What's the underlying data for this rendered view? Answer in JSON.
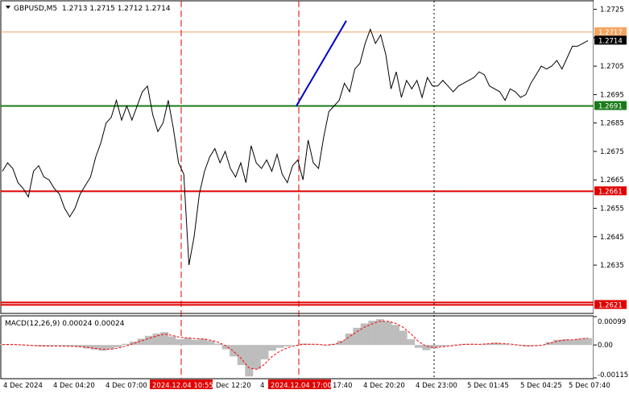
{
  "header": {
    "symbol_text": "GBPUSD,M5",
    "ohlc_text": "1.2713 1.2715 1.2712 1.2714"
  },
  "macd": {
    "label": "MACD(12,26,9) 0.00024 0.00024"
  },
  "colors": {
    "ask_line": "#f4a460",
    "level_green": "#1a7a1a",
    "level_red": "#e00000",
    "price_line": "#000000",
    "trend_line": "#0000cc",
    "macd_hist": "#bdbdbd",
    "macd_signal": "#ff0000"
  },
  "levels": [
    {
      "price": 1.2717,
      "label": "1.2717",
      "kind": "ask"
    },
    {
      "price": 1.2714,
      "label": "1.2714",
      "kind": "bid"
    },
    {
      "price": 1.2691,
      "label": "1.2691",
      "kind": "green"
    },
    {
      "price": 1.2661,
      "label": "1.2661",
      "kind": "red"
    },
    {
      "price": 1.2621,
      "label": "1.2621",
      "kind": "red"
    }
  ],
  "trend_line": {
    "from": {
      "time": "2024.12.04 17:00",
      "price": 1.2691
    },
    "to": {
      "time": "4 Dec 18:30",
      "price": 1.2721
    }
  },
  "chart_data": [
    {
      "type": "line",
      "title": "GBPUSD,M5 1.2713 1.2715 1.2712 1.2714",
      "xlabel": "",
      "ylabel": "",
      "x_ticks": [
        "4 Dec 2024",
        "4 Dec 04:20",
        "4 Dec 07:00",
        "2024.12.04 10:55",
        "Dec 12:20",
        "4",
        "2024.12.04 17:00",
        "17:40",
        "4 Dec 20:20",
        "4 Dec 23:00",
        "5 Dec 01:45",
        "5 Dec 04:25",
        "5 Dec 07:40"
      ],
      "y_ticks": [
        "1.2725",
        "1.2715",
        "1.2705",
        "1.2695",
        "1.2685",
        "1.2675",
        "1.2665",
        "1.2655",
        "1.2645",
        "1.2635"
      ],
      "ylim": [
        1.2618,
        1.2728
      ],
      "vertical_markers": [
        "2024.12.04 10:55",
        "2024.12.04 17:00",
        "4 Dec 23:00"
      ],
      "grid": false,
      "series": [
        {
          "values": [
            1.2668,
            1.2671,
            1.2669,
            1.2664,
            1.2662,
            1.2659,
            1.2668,
            1.267,
            1.2666,
            1.2665,
            1.2662,
            1.266,
            1.2655,
            1.2652,
            1.2655,
            1.266,
            1.2663,
            1.2666,
            1.2673,
            1.2678,
            1.2685,
            1.2687,
            1.2693,
            1.2686,
            1.2691,
            1.2686,
            1.2691,
            1.2696,
            1.2698,
            1.2688,
            1.2682,
            1.2685,
            1.2693,
            1.2683,
            1.2671,
            1.2667,
            1.2635,
            1.2645,
            1.266,
            1.2668,
            1.2673,
            1.2676,
            1.2671,
            1.2675,
            1.2669,
            1.2666,
            1.2671,
            1.2664,
            1.2677,
            1.2671,
            1.2669,
            1.2672,
            1.2668,
            1.2674,
            1.2667,
            1.2664,
            1.267,
            1.2672,
            1.2665,
            1.2679,
            1.2671,
            1.2669,
            1.268,
            1.2689,
            1.2691,
            1.2693,
            1.2699,
            1.2696,
            1.2704,
            1.2706,
            1.2713,
            1.2718,
            1.2713,
            1.2716,
            1.2709,
            1.2697,
            1.2703,
            1.2694,
            1.27,
            1.2697,
            1.27,
            1.2694,
            1.2701,
            1.2698,
            1.2698,
            1.27,
            1.2698,
            1.2696,
            1.2698,
            1.2699,
            1.27,
            1.2701,
            1.2703,
            1.2702,
            1.2698,
            1.2697,
            1.2696,
            1.2693,
            1.2697,
            1.2696,
            1.2694,
            1.2695,
            1.2699,
            1.2702,
            1.2705,
            1.2704,
            1.2705,
            1.2707,
            1.2704,
            1.2708,
            1.2712,
            1.2712,
            1.2713,
            1.2714
          ]
        }
      ]
    },
    {
      "type": "bar",
      "title": "MACD(12,26,9) 0.00024 0.00024",
      "xlabel": "",
      "ylabel": "",
      "y_ticks": [
        "0.00099",
        "0.00",
        "-0.00115"
      ],
      "ylim": [
        -0.00115,
        0.00099
      ],
      "series": [
        {
          "name": "MACD",
          "values": [
            3e-05,
            1e-05,
            2e-05,
            -2e-05,
            -3e-05,
            -5e-05,
            -4e-05,
            -3e-05,
            -4e-05,
            -5e-05,
            -7e-05,
            -0.00012,
            -0.00016,
            -0.0002,
            -0.00015,
            -8e-05,
            4e-05,
            0.00012,
            0.00022,
            0.00032,
            0.0004,
            0.00045,
            0.0003,
            0.0002,
            0.00025,
            0.00018,
            0.00022,
            0.00015,
            5e-05,
            -0.00015,
            -0.0004,
            -0.0007,
            -0.0011,
            -0.00085,
            -0.0005,
            -0.0002,
            -0.0001,
            -5e-05,
            0.0,
            5e-05,
            3e-05,
            2e-05,
            -2e-05,
            4e-05,
            0.00015,
            0.0004,
            0.0006,
            0.00075,
            0.00085,
            0.0009,
            0.00082,
            0.0007,
            0.0005,
            0.0002,
            -0.0001,
            -0.00018,
            -0.00012,
            -5e-05,
            -2e-05,
            2e-05,
            4e-05,
            3e-05,
            2e-05,
            5e-05,
            8e-05,
            4e-05,
            1e-05,
            -2e-05,
            -5e-05,
            -3e-05,
            0.0,
            0.0001,
            0.00018,
            0.0002,
            0.00018,
            0.00022,
            0.00024
          ]
        },
        {
          "name": "Signal",
          "values": [
            1e-05,
            2e-05,
            1e-05,
            0.0,
            -2e-05,
            -3e-05,
            -4e-05,
            -4e-05,
            -4e-05,
            -5e-05,
            -6e-05,
            -8e-05,
            -0.00012,
            -0.00015,
            -0.00015,
            -0.00011,
            -4e-05,
            5e-05,
            0.00014,
            0.00023,
            0.00031,
            0.00038,
            0.00034,
            0.00027,
            0.00025,
            0.00022,
            0.00021,
            0.00017,
            0.0001,
            -3e-05,
            -0.00022,
            -0.00047,
            -0.0008,
            -0.00085,
            -0.00068,
            -0.0004,
            -0.00022,
            -0.0001,
            -3e-05,
            2e-05,
            3e-05,
            2e-05,
            0.0,
            2e-05,
            0.0001,
            0.00028,
            0.00046,
            0.00062,
            0.00074,
            0.00083,
            0.00083,
            0.00076,
            0.00062,
            0.0004,
            0.00012,
            -4e-05,
            -9e-05,
            -7e-05,
            -4e-05,
            -1e-05,
            2e-05,
            3e-05,
            2e-05,
            4e-05,
            6e-05,
            5e-05,
            3e-05,
            0.0,
            -3e-05,
            -3e-05,
            -1e-05,
            6e-05,
            0.00013,
            0.00017,
            0.00018,
            0.00021,
            0.00024
          ]
        }
      ]
    }
  ]
}
